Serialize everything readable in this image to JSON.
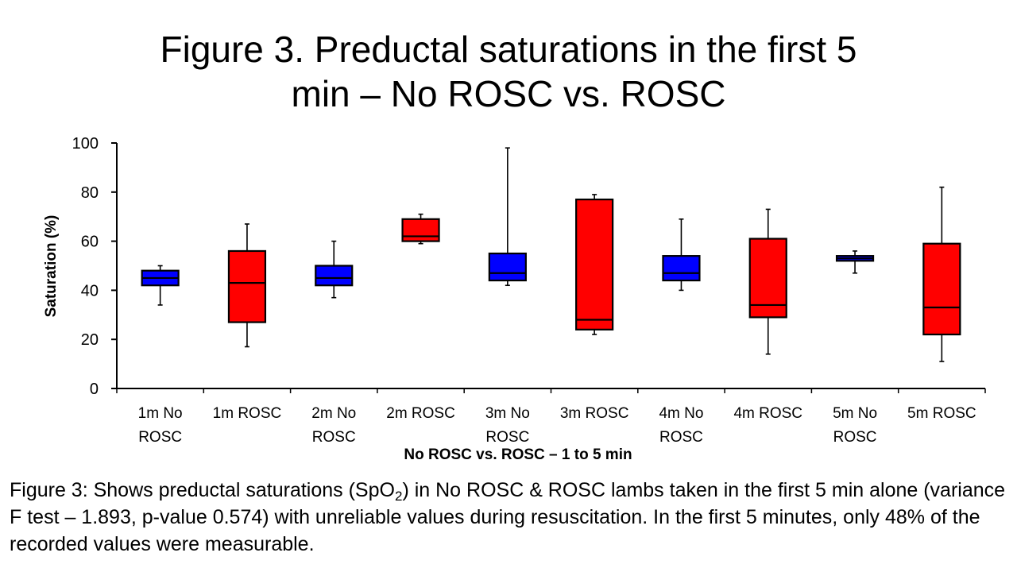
{
  "title": {
    "line1": "Figure 3. Preductal saturations in the first 5",
    "line2": "min – No ROSC vs. ROSC"
  },
  "chart_data": {
    "type": "box",
    "title": "Figure 3. Preductal saturations in the first 5 min – No ROSC vs. ROSC",
    "xlabel": "No ROSC vs. ROSC – 1 to 5 min",
    "ylabel": "Saturation (%)",
    "ylim": [
      0,
      100
    ],
    "yticks": [
      0,
      20,
      40,
      60,
      80,
      100
    ],
    "grid": false,
    "legend": "none",
    "colors": {
      "No ROSC": "#0000ff",
      "ROSC": "#ff0000"
    },
    "categories": [
      {
        "label": [
          "1m No",
          "ROSC"
        ],
        "group": "No ROSC"
      },
      {
        "label": [
          "1m ROSC"
        ],
        "group": "ROSC"
      },
      {
        "label": [
          "2m No",
          "ROSC"
        ],
        "group": "No ROSC"
      },
      {
        "label": [
          "2m ROSC"
        ],
        "group": "ROSC"
      },
      {
        "label": [
          "3m No",
          "ROSC"
        ],
        "group": "No ROSC"
      },
      {
        "label": [
          "3m ROSC"
        ],
        "group": "ROSC"
      },
      {
        "label": [
          "4m No",
          "ROSC"
        ],
        "group": "No ROSC"
      },
      {
        "label": [
          "4m ROSC"
        ],
        "group": "ROSC"
      },
      {
        "label": [
          "5m No",
          "ROSC"
        ],
        "group": "No ROSC"
      },
      {
        "label": [
          "5m ROSC"
        ],
        "group": "ROSC"
      }
    ],
    "boxes": [
      {
        "min": 34,
        "q1": 42,
        "median": 45,
        "q3": 48,
        "max": 50
      },
      {
        "min": 17,
        "q1": 27,
        "median": 43,
        "q3": 56,
        "max": 67
      },
      {
        "min": 37,
        "q1": 42,
        "median": 45,
        "q3": 50,
        "max": 60
      },
      {
        "min": 59,
        "q1": 60,
        "median": 62,
        "q3": 69,
        "max": 71
      },
      {
        "min": 42,
        "q1": 44,
        "median": 47,
        "q3": 55,
        "max": 98
      },
      {
        "min": 22,
        "q1": 24,
        "median": 28,
        "q3": 77,
        "max": 79
      },
      {
        "min": 40,
        "q1": 44,
        "median": 47,
        "q3": 54,
        "max": 69
      },
      {
        "min": 14,
        "q1": 29,
        "median": 34,
        "q3": 61,
        "max": 73
      },
      {
        "min": 47,
        "q1": 52,
        "median": 53,
        "q3": 54,
        "max": 56
      },
      {
        "min": 11,
        "q1": 22,
        "median": 33,
        "q3": 59,
        "max": 82
      }
    ]
  },
  "caption": {
    "part1": "Figure 3: Shows preductal saturations (SpO",
    "sub": "2",
    "part2": ") in No ROSC & ROSC lambs taken in the first 5 min alone (variance F test – 1.893, p-value 0.574) with unreliable values during resuscitation. In the first 5 minutes, only 48% of the recorded values were measurable."
  }
}
